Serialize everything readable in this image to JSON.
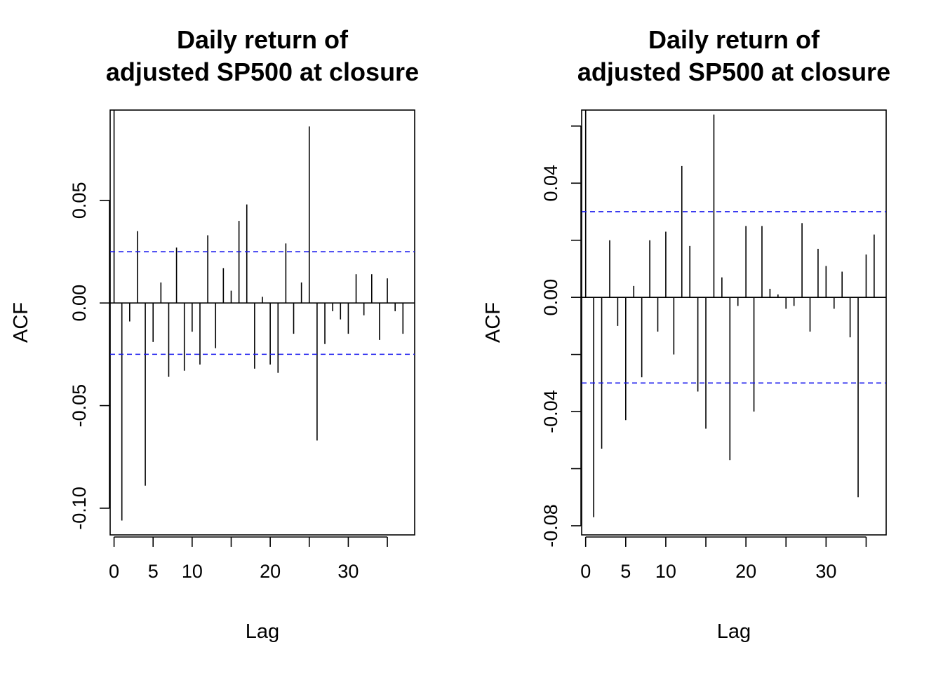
{
  "chart_data": [
    {
      "type": "bar",
      "title": [
        "Daily return of",
        "adjusted SP500 at closure"
      ],
      "xlabel": "Lag",
      "ylabel": "ACF",
      "xlim": [
        -0.5,
        38.5
      ],
      "ylim": [
        -0.113,
        0.094
      ],
      "x_ticks": [
        0,
        5,
        10,
        20,
        30
      ],
      "x_tick_marks": [
        0,
        5,
        10,
        15,
        20,
        25,
        30,
        35
      ],
      "y_ticks": [
        -0.1,
        -0.05,
        0.0,
        0.05
      ],
      "y_tick_labels": [
        "-0.10",
        "-0.05",
        "0.00",
        "0.05"
      ],
      "confidence_band": 0.025,
      "lags": [
        1,
        2,
        3,
        4,
        5,
        6,
        7,
        8,
        9,
        10,
        11,
        12,
        13,
        14,
        15,
        16,
        17,
        18,
        19,
        20,
        21,
        22,
        23,
        24,
        25,
        26,
        27,
        28,
        29,
        30,
        31,
        32,
        33,
        34,
        35,
        36,
        37
      ],
      "values": [
        -0.106,
        -0.009,
        0.035,
        -0.089,
        -0.019,
        0.01,
        -0.036,
        0.027,
        -0.033,
        -0.014,
        -0.03,
        0.033,
        -0.022,
        0.017,
        0.006,
        0.04,
        0.048,
        -0.032,
        0.003,
        -0.03,
        -0.034,
        0.029,
        -0.015,
        0.01,
        0.086,
        -0.067,
        -0.02,
        -0.004,
        -0.008,
        -0.015,
        0.014,
        -0.006,
        0.014,
        -0.018,
        0.012,
        -0.004,
        -0.015
      ]
    },
    {
      "type": "bar",
      "title": [
        "Daily return of",
        "adjusted SP500 at closure"
      ],
      "xlabel": "Lag",
      "ylabel": "ACF",
      "xlim": [
        -0.5,
        37.5
      ],
      "ylim": [
        -0.0832,
        0.0656
      ],
      "x_ticks": [
        0,
        5,
        10,
        20,
        30
      ],
      "x_tick_marks": [
        0,
        5,
        10,
        15,
        20,
        25,
        30,
        35
      ],
      "y_ticks": [
        -0.08,
        -0.06,
        -0.04,
        -0.02,
        0.0,
        0.02,
        0.04,
        0.06
      ],
      "y_tick_labels": [
        "-0.08",
        "",
        "-0.04",
        "",
        "0.00",
        "",
        "0.04",
        ""
      ],
      "confidence_band": 0.03,
      "lags": [
        1,
        2,
        3,
        4,
        5,
        6,
        7,
        8,
        9,
        10,
        11,
        12,
        13,
        14,
        15,
        16,
        17,
        18,
        19,
        20,
        21,
        22,
        23,
        24,
        25,
        26,
        27,
        28,
        29,
        30,
        31,
        32,
        33,
        34,
        35,
        36
      ],
      "values": [
        -0.077,
        -0.053,
        0.02,
        -0.01,
        -0.043,
        0.004,
        -0.028,
        0.02,
        -0.012,
        0.023,
        -0.02,
        0.046,
        0.018,
        -0.033,
        -0.046,
        0.064,
        0.007,
        -0.057,
        -0.003,
        0.025,
        -0.04,
        0.025,
        0.003,
        0.001,
        -0.004,
        -0.003,
        0.026,
        -0.012,
        0.017,
        0.011,
        -0.004,
        0.009,
        -0.014,
        -0.07,
        0.015,
        0.022
      ]
    }
  ]
}
